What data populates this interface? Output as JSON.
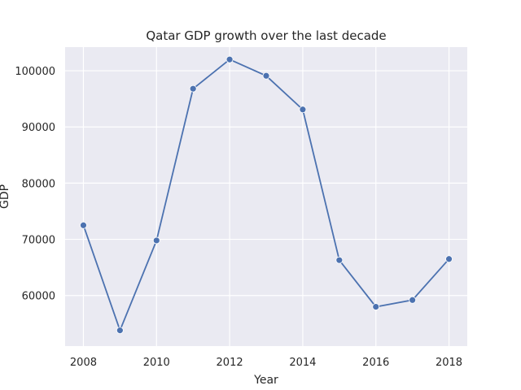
{
  "chart_data": {
    "type": "line",
    "title": "Qatar GDP growth over the last decade",
    "xlabel": "Year",
    "ylabel": "GDP",
    "x": [
      2008,
      2009,
      2010,
      2011,
      2012,
      2013,
      2014,
      2015,
      2016,
      2017,
      2018
    ],
    "series": [
      {
        "values": [
          72500,
          53800,
          69800,
          96800,
          102000,
          99100,
          93100,
          66300,
          58000,
          59200,
          66500
        ]
      }
    ],
    "xlim": [
      2007.5,
      2018.5
    ],
    "ylim": [
      51000,
      104200
    ],
    "xticks": [
      2008,
      2010,
      2012,
      2014,
      2016,
      2018
    ],
    "yticks": [
      60000,
      70000,
      80000,
      90000,
      100000
    ],
    "grid": true,
    "line_color": "#4c72b0",
    "background_color": "#eaeaf2",
    "grid_color": "#ffffff"
  }
}
